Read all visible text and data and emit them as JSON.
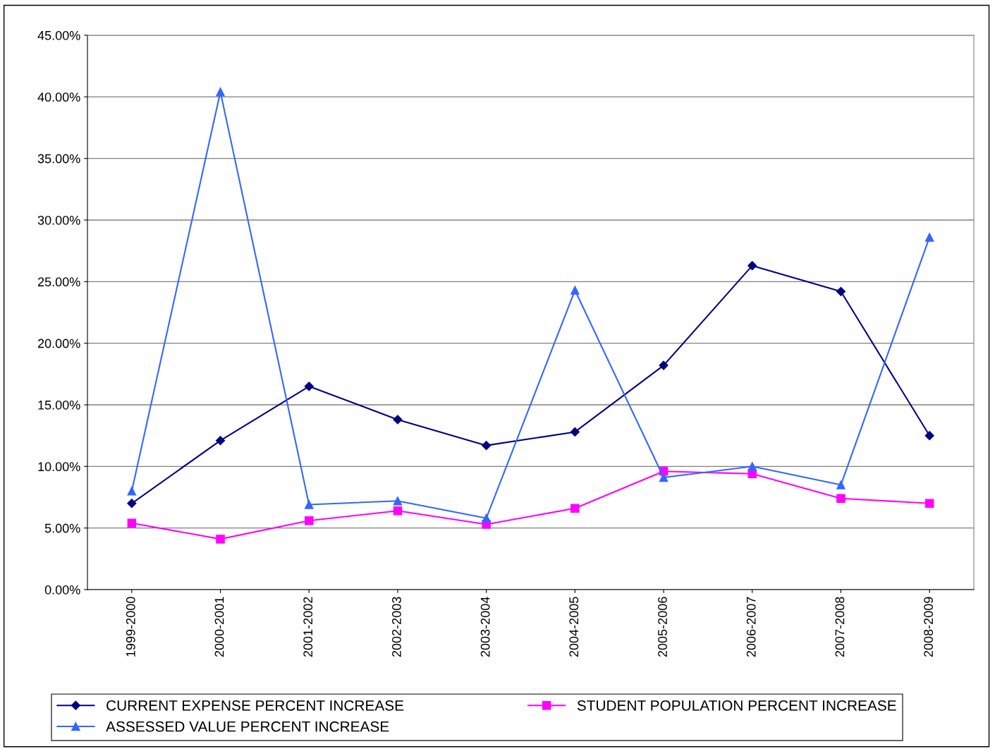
{
  "chart_data": {
    "type": "line",
    "categories": [
      "1999-2000",
      "2000-2001",
      "2001-2002",
      "2002-2003",
      "2003-2004",
      "2004-2005",
      "2005-2006",
      "2006-2007",
      "2007-2008",
      "2008-2009"
    ],
    "series": [
      {
        "name": "CURRENT EXPENSE PERCENT INCREASE",
        "color": "#000080",
        "marker": "diamond",
        "values": [
          7.0,
          12.1,
          16.5,
          13.8,
          11.7,
          12.8,
          18.2,
          26.3,
          24.2,
          12.5
        ]
      },
      {
        "name": "STUDENT POPULATION PERCENT INCREASE",
        "color": "#ff00ff",
        "marker": "square",
        "values": [
          5.4,
          4.1,
          5.6,
          6.4,
          5.3,
          6.6,
          9.6,
          9.4,
          7.4,
          7.0
        ]
      },
      {
        "name": "ASSESSED VALUE PERCENT INCREASE",
        "color": "#3366ff",
        "marker": "triangle",
        "values": [
          8.0,
          40.4,
          6.9,
          7.2,
          5.8,
          24.3,
          9.1,
          10.0,
          8.5,
          28.6
        ]
      }
    ],
    "ylim": [
      0,
      45
    ],
    "yticks": [
      {
        "value": 0,
        "label": "0.00%"
      },
      {
        "value": 5,
        "label": "5.00%"
      },
      {
        "value": 10,
        "label": "10.00%"
      },
      {
        "value": 15,
        "label": "15.00%"
      },
      {
        "value": 20,
        "label": "20.00%"
      },
      {
        "value": 25,
        "label": "25.00%"
      },
      {
        "value": 30,
        "label": "30.00%"
      },
      {
        "value": 35,
        "label": "35.00%"
      },
      {
        "value": 40,
        "label": "40.00%"
      },
      {
        "value": 45,
        "label": "45.00%"
      }
    ],
    "grid": "y",
    "legend": "bottom",
    "line_style": "solid"
  }
}
